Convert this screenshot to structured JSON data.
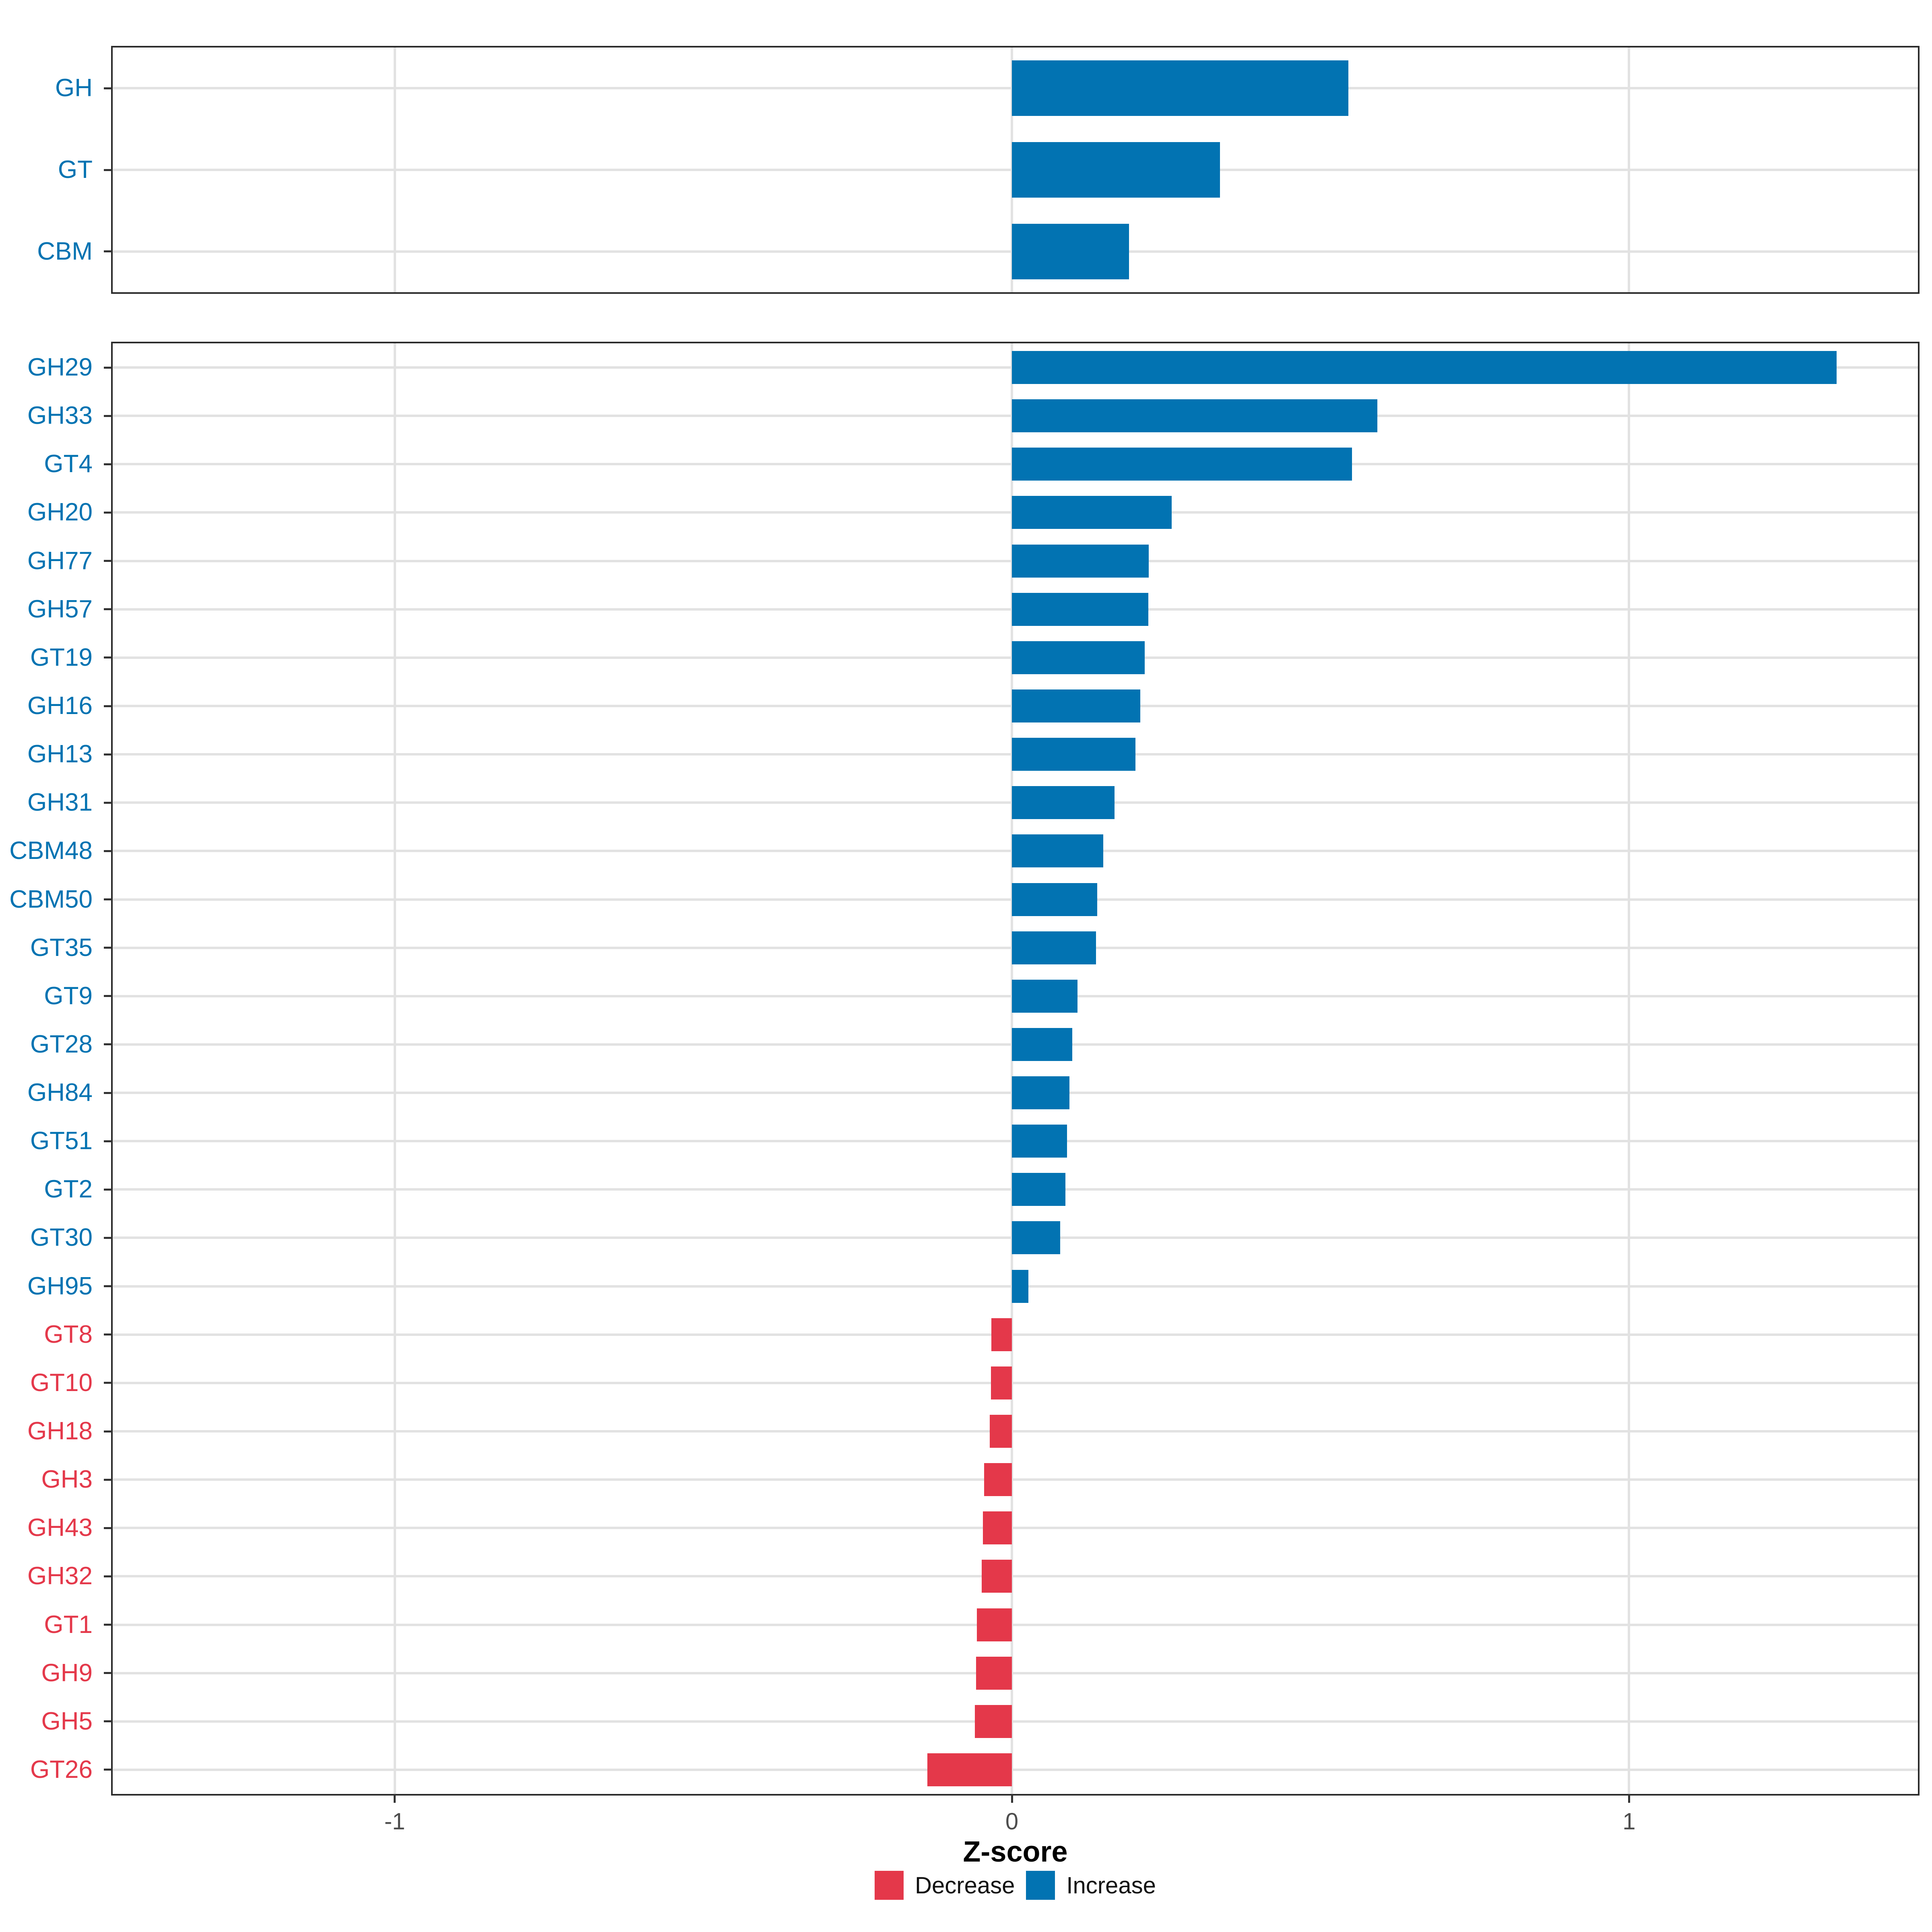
{
  "chart_data": {
    "type": "bar",
    "orientation": "horizontal",
    "title": "",
    "xlabel": "Z-score",
    "ylabel": "",
    "x_tick_labels": [
      "-1",
      "0",
      "1"
    ],
    "x_tick_values": [
      -1,
      0,
      1
    ],
    "xlim": [
      -1.457,
      1.468
    ],
    "grid": true,
    "legend_position": "bottom",
    "colors": {
      "increase": "#0273B2",
      "decrease": "#E4384A",
      "grid": "#E2E2E2",
      "panel_border": "#2B2B2B",
      "tick_mark": "#333333",
      "tick_text": "#4D4D4D"
    },
    "legend": [
      {
        "label": "Decrease",
        "key": "decrease"
      },
      {
        "label": "Increase",
        "key": "increase"
      }
    ],
    "panels": [
      {
        "name": "cazyme-class",
        "rows": [
          {
            "label": "GH",
            "value": 0.545,
            "direction": "increase"
          },
          {
            "label": "GT",
            "value": 0.337,
            "direction": "increase"
          },
          {
            "label": "CBM",
            "value": 0.19,
            "direction": "increase"
          }
        ]
      },
      {
        "name": "cazyme-family",
        "rows": [
          {
            "label": "GH29",
            "value": 1.336,
            "direction": "increase"
          },
          {
            "label": "GH33",
            "value": 0.592,
            "direction": "increase"
          },
          {
            "label": "GT4",
            "value": 0.551,
            "direction": "increase"
          },
          {
            "label": "GH20",
            "value": 0.259,
            "direction": "increase"
          },
          {
            "label": "GH77",
            "value": 0.222,
            "direction": "increase"
          },
          {
            "label": "GH57",
            "value": 0.221,
            "direction": "increase"
          },
          {
            "label": "GT19",
            "value": 0.215,
            "direction": "increase"
          },
          {
            "label": "GH16",
            "value": 0.208,
            "direction": "increase"
          },
          {
            "label": "GH13",
            "value": 0.2,
            "direction": "increase"
          },
          {
            "label": "GH31",
            "value": 0.166,
            "direction": "increase"
          },
          {
            "label": "CBM48",
            "value": 0.148,
            "direction": "increase"
          },
          {
            "label": "CBM50",
            "value": 0.138,
            "direction": "increase"
          },
          {
            "label": "GT35",
            "value": 0.136,
            "direction": "increase"
          },
          {
            "label": "GT9",
            "value": 0.106,
            "direction": "increase"
          },
          {
            "label": "GT28",
            "value": 0.098,
            "direction": "increase"
          },
          {
            "label": "GH84",
            "value": 0.093,
            "direction": "increase"
          },
          {
            "label": "GT51",
            "value": 0.089,
            "direction": "increase"
          },
          {
            "label": "GT2",
            "value": 0.087,
            "direction": "increase"
          },
          {
            "label": "GT30",
            "value": 0.078,
            "direction": "increase"
          },
          {
            "label": "GH95",
            "value": 0.027,
            "direction": "increase"
          },
          {
            "label": "GT8",
            "value": -0.033,
            "direction": "decrease"
          },
          {
            "label": "GT10",
            "value": -0.034,
            "direction": "decrease"
          },
          {
            "label": "GH18",
            "value": -0.036,
            "direction": "decrease"
          },
          {
            "label": "GH3",
            "value": -0.045,
            "direction": "decrease"
          },
          {
            "label": "GH43",
            "value": -0.047,
            "direction": "decrease"
          },
          {
            "label": "GH32",
            "value": -0.049,
            "direction": "decrease"
          },
          {
            "label": "GT1",
            "value": -0.057,
            "direction": "decrease"
          },
          {
            "label": "GH9",
            "value": -0.058,
            "direction": "decrease"
          },
          {
            "label": "GH5",
            "value": -0.06,
            "direction": "decrease"
          },
          {
            "label": "GT26",
            "value": -0.137,
            "direction": "decrease"
          }
        ]
      }
    ]
  }
}
